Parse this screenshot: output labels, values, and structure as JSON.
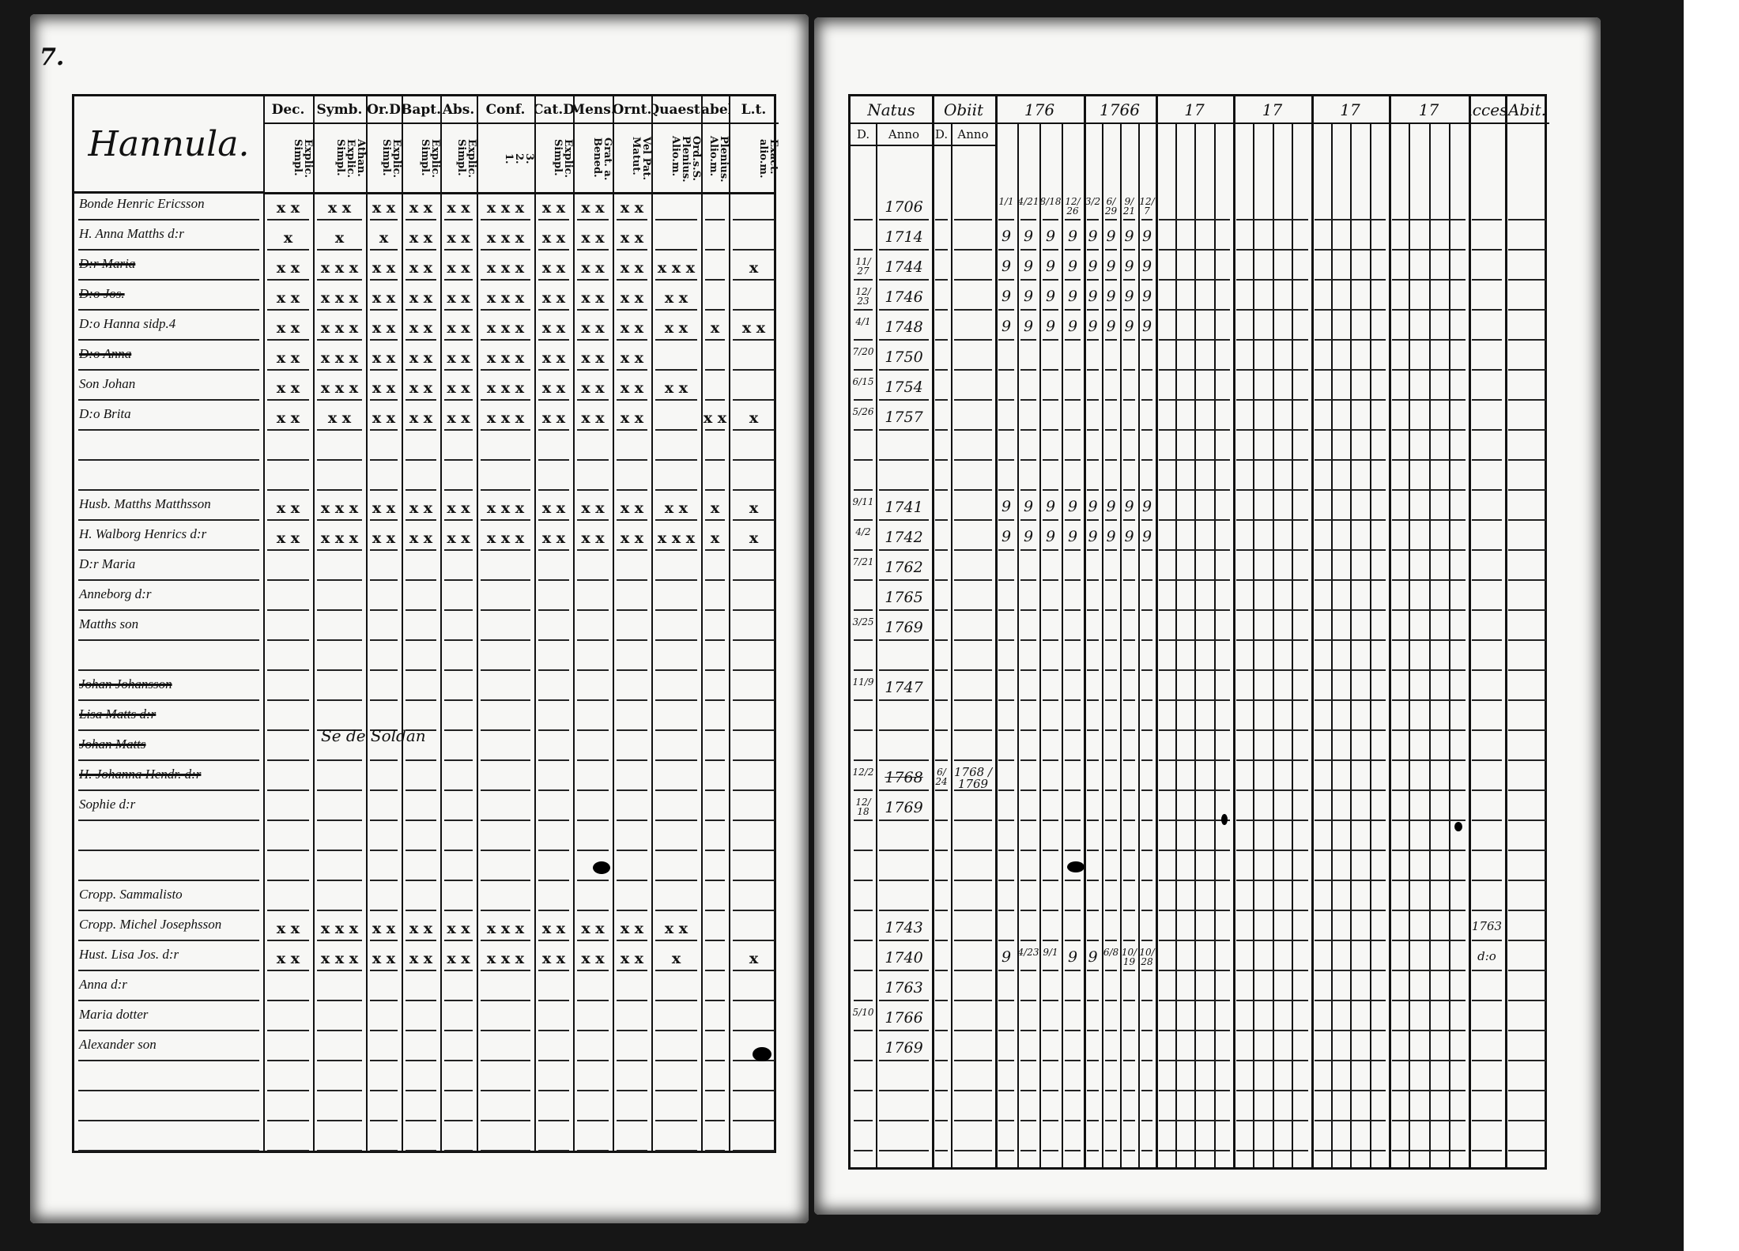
{
  "page_number": "7.",
  "left": {
    "title": "Hannula.",
    "columns": [
      {
        "head": "Dec.",
        "sub": "Explic.\nSimpl."
      },
      {
        "head": "Symb.",
        "sub": "Athan.\nExplic.\nSimpl."
      },
      {
        "head": "Or.D",
        "sub": "Explic.\nSimpl."
      },
      {
        "head": "Bapt.",
        "sub": "Explic.\nSimpl."
      },
      {
        "head": "Abs.",
        "sub": "Explic.\nSimpl."
      },
      {
        "head": "Conf.",
        "sub": "3.\n2.\n1."
      },
      {
        "head": "Cat.D",
        "sub": "Explic.\nSimpl."
      },
      {
        "head": "Mens.",
        "sub": "Grat. a.\nBened."
      },
      {
        "head": "Ornt.",
        "sub": "Vel Pat.\nMatut."
      },
      {
        "head": "Quaest.",
        "sub": "Ord.s.S.\nPlenius.\nAlio.m."
      },
      {
        "head": "Tabel.",
        "sub": "Plenius.\nAlio.m."
      },
      {
        "head": "L.t.",
        "sub": "Exact.\nalio.m."
      }
    ],
    "rows": [
      {
        "name": "Bonde Henric Ericsson",
        "marks": [
          "x x",
          "x x",
          "x x",
          "x x",
          "x x",
          "x x x",
          "x x",
          "x x",
          "x x",
          "",
          "",
          ""
        ]
      },
      {
        "name": "H. Anna Matths d:r",
        "marks": [
          "x",
          "x",
          "x",
          "x x",
          "x x",
          "x x x",
          "x x",
          "x x",
          "x x",
          "",
          "",
          ""
        ]
      },
      {
        "name": "D:r Maria",
        "struck": true,
        "marks": [
          "x x",
          "x x x",
          "x x",
          "x x",
          "x x",
          "x x x",
          "x x",
          "x x",
          "x x",
          "x x x",
          "",
          "x"
        ]
      },
      {
        "name": "D:o Jos.",
        "struck": true,
        "marks": [
          "x x",
          "x x x",
          "x x",
          "x x",
          "x x",
          "x x x",
          "x x",
          "x x",
          "x x",
          "x x",
          "",
          ""
        ]
      },
      {
        "name": "D:o Hanna sidp.4",
        "marks": [
          "x x",
          "x x x",
          "x x",
          "x x",
          "x x",
          "x x x",
          "x x",
          "x x",
          "x x",
          "x x",
          "x",
          "x x"
        ]
      },
      {
        "name": "D:o Anna",
        "struck": true,
        "marks": [
          "x x",
          "x x x",
          "x x",
          "x x",
          "x x",
          "x x x",
          "x x",
          "x x",
          "x x",
          "",
          "",
          ""
        ]
      },
      {
        "name": "Son Johan",
        "marks": [
          "x x",
          "x x x",
          "x x",
          "x x",
          "x x",
          "x x x",
          "x x",
          "x x",
          "x x",
          "x x",
          "",
          ""
        ]
      },
      {
        "name": "D:o Brita",
        "marks": [
          "x x",
          "x x",
          "x x",
          "x x",
          "x x",
          "x x x",
          "x x",
          "x x",
          "x x",
          "",
          "x x",
          "x"
        ]
      },
      {
        "name": "",
        "marks": []
      },
      {
        "name": "",
        "marks": []
      },
      {
        "name": "Husb. Matths Matthsson",
        "marks": [
          "x x",
          "x x x",
          "x x",
          "x x",
          "x x",
          "x x x",
          "x x",
          "x x",
          "x x",
          "x x",
          "x",
          "x"
        ]
      },
      {
        "name": "H. Walborg Henrics d:r",
        "marks": [
          "x x",
          "x x x",
          "x x",
          "x x",
          "x x",
          "x x x",
          "x x",
          "x x",
          "x x",
          "x x x",
          "x",
          "x"
        ]
      },
      {
        "name": "D:r Maria",
        "marks": []
      },
      {
        "name": "Anneborg d:r",
        "marks": []
      },
      {
        "name": "Matths son",
        "marks": []
      },
      {
        "name": "",
        "marks": []
      },
      {
        "name": "Johan Johansson",
        "struck": true,
        "marks": []
      },
      {
        "name": "Lisa Matts d:r",
        "struck": true,
        "marks": []
      },
      {
        "name": "Johan Matts",
        "struck": true,
        "marks": []
      },
      {
        "name": "H. Johanna Hendr. d:r",
        "struck": true,
        "marks": []
      },
      {
        "name": "Sophie d:r",
        "marks": []
      },
      {
        "name": "",
        "marks": []
      },
      {
        "name": "",
        "marks": []
      },
      {
        "name": "Cropp. Sammalisto",
        "marks": []
      },
      {
        "name": "Cropp. Michel Josephsson",
        "marks": [
          "x x",
          "x x x",
          "x x",
          "x x",
          "x x",
          "x x x",
          "x x",
          "x x",
          "x x",
          "x x",
          "",
          ""
        ]
      },
      {
        "name": "Hust. Lisa Jos. d:r",
        "marks": [
          "x x",
          "x x x",
          "x x",
          "x x",
          "x x",
          "x x x",
          "x x",
          "x x",
          "x x",
          "x",
          "",
          "x"
        ]
      },
      {
        "name": "Anna d:r",
        "marks": []
      },
      {
        "name": "Maria dotter",
        "marks": []
      },
      {
        "name": "Alexander son",
        "marks": []
      },
      {
        "name": "",
        "marks": []
      },
      {
        "name": "",
        "marks": []
      },
      {
        "name": "",
        "marks": []
      }
    ],
    "annotation": "Se de Soldan"
  },
  "right": {
    "headers": {
      "natus": "Natus",
      "obiit": "Obiit",
      "y1": "176",
      "y2": "1766",
      "y3": "17",
      "y4": "17",
      "y5": "17",
      "y6": "17",
      "acces": "Acces.",
      "abit": "Abit."
    },
    "subheaders": {
      "natus_d": "D.",
      "natus_anno": "Anno",
      "obiit_d": "D.",
      "obiit_anno": "Anno"
    },
    "rows": [
      {
        "d": "",
        "anno": "1706",
        "comm": [
          "1/1",
          "4/21",
          "8/18",
          "12/26",
          "3/2",
          "6/29",
          "9/21",
          "12/7"
        ]
      },
      {
        "d": "",
        "anno": "1714",
        "comm": [
          "9",
          "9",
          "9",
          "9",
          "9",
          "9",
          "9",
          "9"
        ]
      },
      {
        "d": "11/27",
        "anno": "1744",
        "comm": [
          "9",
          "9",
          "9",
          "9",
          "9",
          "9",
          "9",
          "9"
        ]
      },
      {
        "d": "12/23",
        "anno": "1746",
        "comm": [
          "9",
          "9",
          "9",
          "9",
          "9",
          "9",
          "9",
          "9"
        ]
      },
      {
        "d": "4/1",
        "anno": "1748",
        "comm": [
          "9",
          "9",
          "9",
          "9",
          "9",
          "9",
          "9",
          "9"
        ]
      },
      {
        "d": "7/20",
        "anno": "1750"
      },
      {
        "d": "6/15",
        "anno": "1754"
      },
      {
        "d": "5/26",
        "anno": "1757"
      },
      {
        "d": "",
        "anno": ""
      },
      {
        "d": "",
        "anno": ""
      },
      {
        "d": "9/11",
        "anno": "1741",
        "comm": [
          "9",
          "9",
          "9",
          "9",
          "9",
          "9",
          "9",
          "9"
        ]
      },
      {
        "d": "4/2",
        "anno": "1742",
        "comm": [
          "9",
          "9",
          "9",
          "9",
          "9",
          "9",
          "9",
          "9"
        ]
      },
      {
        "d": "7/21",
        "anno": "1762"
      },
      {
        "d": "",
        "anno": "1765"
      },
      {
        "d": "3/25",
        "anno": "1769"
      },
      {
        "d": "",
        "anno": ""
      },
      {
        "d": "11/9",
        "anno": "1747"
      },
      {
        "d": "",
        "anno": ""
      },
      {
        "d": "",
        "anno": ""
      },
      {
        "d": "12/2",
        "anno": "1768",
        "struck": true,
        "od": "6/24",
        "oanno": "1768 / 1769"
      },
      {
        "d": "12/18",
        "anno": "1769"
      },
      {
        "d": "",
        "anno": ""
      },
      {
        "d": "",
        "anno": ""
      },
      {
        "d": "",
        "anno": ""
      },
      {
        "d": "",
        "anno": "1743",
        "acces": "1763"
      },
      {
        "d": "",
        "anno": "1740",
        "comm": [
          "9",
          "4/23",
          "9/1",
          "9",
          "9",
          "6/8",
          "10/19",
          "10/28"
        ],
        "acces": "d:o"
      },
      {
        "d": "",
        "anno": "1763"
      },
      {
        "d": "5/10",
        "anno": "1766"
      },
      {
        "d": "",
        "anno": "1769"
      },
      {
        "d": "",
        "anno": ""
      },
      {
        "d": "",
        "anno": ""
      },
      {
        "d": "",
        "anno": ""
      }
    ]
  },
  "colors": {
    "ink": "#111111",
    "paper": "#f7f7f5",
    "scan_border": "#161616"
  }
}
